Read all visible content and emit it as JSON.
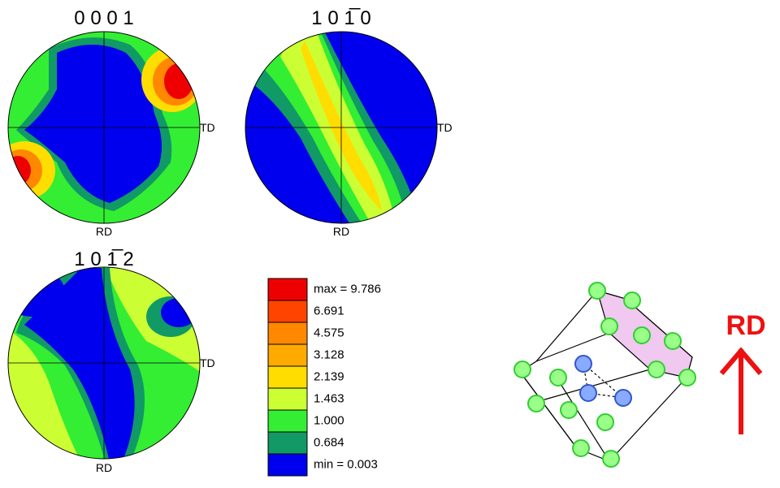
{
  "pole_figures": [
    {
      "title": "0 0 0 1",
      "right_label": "TD",
      "bottom_label": "RD"
    },
    {
      "title": "1 0 1̅ 0",
      "right_label": "TD",
      "bottom_label": "RD"
    },
    {
      "title": "1 0 1̅ 2",
      "right_label": "TD",
      "bottom_label": "RD"
    }
  ],
  "legend": {
    "items": [
      {
        "label": "max = 9.786",
        "color": "#ee0000"
      },
      {
        "label": "6.691",
        "color": "#ff4400"
      },
      {
        "label": "4.575",
        "color": "#ff8800"
      },
      {
        "label": "3.128",
        "color": "#ffaa00"
      },
      {
        "label": "2.139",
        "color": "#ffdd00"
      },
      {
        "label": "1.463",
        "color": "#ccff33"
      },
      {
        "label": "1.000",
        "color": "#33ee33"
      },
      {
        "label": "0.684",
        "color": "#119966"
      },
      {
        "label": "min = 0.003",
        "color": "#0000ee"
      }
    ]
  },
  "crystal": {
    "direction_label": "RD"
  }
}
